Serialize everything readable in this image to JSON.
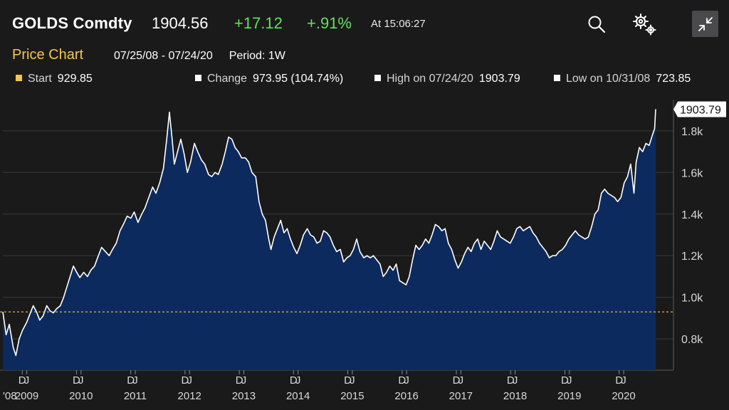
{
  "header": {
    "ticker": "GOLDS Comdty",
    "last_price": "1904.56",
    "net_change": "+17.12",
    "pct_change": "+.91%",
    "time": "At 15:06:27",
    "icons": [
      "search-icon",
      "gear-icon",
      "minimize-icon"
    ]
  },
  "subheader": {
    "title": "Price Chart",
    "date_range": "07/25/08 - 07/24/20",
    "period": "Period: 1W"
  },
  "stats": {
    "start_label": "Start",
    "start_value": "929.85",
    "change_label": "Change",
    "change_value": "973.95 (104.74%)",
    "high_label": "High on 07/24/20",
    "high_value": "1903.79",
    "low_label": "Low on 10/31/08",
    "low_value": "723.85"
  },
  "colors": {
    "background": "#1b1a1b",
    "area_fill": "#0d2a5e",
    "line": "#ffffff",
    "positive": "#5fe35b",
    "accent": "#f5c54e",
    "start_line": "#f5c54e"
  },
  "chart_data": {
    "type": "area",
    "title": "Price Chart",
    "xlabel": "",
    "ylabel": "",
    "ylim": [
      650,
      1950
    ],
    "grid": true,
    "y_ticks": [
      800,
      1000,
      1200,
      1400,
      1600,
      1800
    ],
    "y_tick_labels": [
      "0.8k",
      "1.0k",
      "1.2k",
      "1.4k",
      "1.6k",
      "1.8k"
    ],
    "last_value_label": "1903.79",
    "start_reference": 929.85,
    "x_ticks": [
      {
        "t": 2008.917,
        "month": "D",
        "year": "'08"
      },
      {
        "t": 2009.0,
        "month": "J",
        "year": "2009"
      },
      {
        "t": 2009.917,
        "month": "D",
        "year": ""
      },
      {
        "t": 2010.0,
        "month": "J",
        "year": "2010"
      },
      {
        "t": 2010.917,
        "month": "D",
        "year": ""
      },
      {
        "t": 2011.0,
        "month": "J",
        "year": "2011"
      },
      {
        "t": 2011.917,
        "month": "D",
        "year": ""
      },
      {
        "t": 2012.0,
        "month": "J",
        "year": "2012"
      },
      {
        "t": 2012.917,
        "month": "D",
        "year": ""
      },
      {
        "t": 2013.0,
        "month": "J",
        "year": "2013"
      },
      {
        "t": 2013.917,
        "month": "D",
        "year": ""
      },
      {
        "t": 2014.0,
        "month": "J",
        "year": "2014"
      },
      {
        "t": 2014.917,
        "month": "D",
        "year": ""
      },
      {
        "t": 2015.0,
        "month": "J",
        "year": "2015"
      },
      {
        "t": 2015.917,
        "month": "D",
        "year": ""
      },
      {
        "t": 2016.0,
        "month": "J",
        "year": "2016"
      },
      {
        "t": 2016.917,
        "month": "D",
        "year": ""
      },
      {
        "t": 2017.0,
        "month": "J",
        "year": "2017"
      },
      {
        "t": 2017.917,
        "month": "D",
        "year": ""
      },
      {
        "t": 2018.0,
        "month": "J",
        "year": "2018"
      },
      {
        "t": 2018.917,
        "month": "D",
        "year": ""
      },
      {
        "t": 2019.0,
        "month": "J",
        "year": "2019"
      },
      {
        "t": 2019.917,
        "month": "D",
        "year": ""
      },
      {
        "t": 2020.0,
        "month": "J",
        "year": "2020"
      }
    ],
    "series": [
      {
        "name": "GOLDS Comdty",
        "points": [
          [
            2008.56,
            930
          ],
          [
            2008.62,
            820
          ],
          [
            2008.68,
            870
          ],
          [
            2008.75,
            760
          ],
          [
            2008.8,
            720
          ],
          [
            2008.86,
            800
          ],
          [
            2008.92,
            840
          ],
          [
            2009.0,
            880
          ],
          [
            2009.06,
            920
          ],
          [
            2009.12,
            960
          ],
          [
            2009.18,
            930
          ],
          [
            2009.24,
            890
          ],
          [
            2009.3,
            910
          ],
          [
            2009.37,
            960
          ],
          [
            2009.43,
            935
          ],
          [
            2009.49,
            925
          ],
          [
            2009.55,
            945
          ],
          [
            2009.62,
            960
          ],
          [
            2009.68,
            1000
          ],
          [
            2009.74,
            1050
          ],
          [
            2009.8,
            1100
          ],
          [
            2009.86,
            1150
          ],
          [
            2009.92,
            1120
          ],
          [
            2009.98,
            1095
          ],
          [
            2010.05,
            1120
          ],
          [
            2010.12,
            1100
          ],
          [
            2010.18,
            1130
          ],
          [
            2010.25,
            1150
          ],
          [
            2010.32,
            1200
          ],
          [
            2010.38,
            1240
          ],
          [
            2010.45,
            1220
          ],
          [
            2010.52,
            1200
          ],
          [
            2010.58,
            1230
          ],
          [
            2010.65,
            1260
          ],
          [
            2010.72,
            1320
          ],
          [
            2010.78,
            1350
          ],
          [
            2010.85,
            1390
          ],
          [
            2010.92,
            1380
          ],
          [
            2010.98,
            1410
          ],
          [
            2011.05,
            1360
          ],
          [
            2011.12,
            1400
          ],
          [
            2011.18,
            1430
          ],
          [
            2011.25,
            1480
          ],
          [
            2011.32,
            1530
          ],
          [
            2011.38,
            1500
          ],
          [
            2011.45,
            1550
          ],
          [
            2011.52,
            1620
          ],
          [
            2011.58,
            1760
          ],
          [
            2011.63,
            1890
          ],
          [
            2011.68,
            1760
          ],
          [
            2011.72,
            1640
          ],
          [
            2011.78,
            1700
          ],
          [
            2011.84,
            1760
          ],
          [
            2011.9,
            1690
          ],
          [
            2011.96,
            1600
          ],
          [
            2012.02,
            1650
          ],
          [
            2012.09,
            1740
          ],
          [
            2012.15,
            1700
          ],
          [
            2012.22,
            1660
          ],
          [
            2012.28,
            1640
          ],
          [
            2012.35,
            1590
          ],
          [
            2012.41,
            1580
          ],
          [
            2012.47,
            1600
          ],
          [
            2012.53,
            1590
          ],
          [
            2012.6,
            1640
          ],
          [
            2012.66,
            1700
          ],
          [
            2012.72,
            1770
          ],
          [
            2012.78,
            1760
          ],
          [
            2012.84,
            1720
          ],
          [
            2012.9,
            1700
          ],
          [
            2012.96,
            1670
          ],
          [
            2013.03,
            1670
          ],
          [
            2013.09,
            1650
          ],
          [
            2013.15,
            1600
          ],
          [
            2013.22,
            1580
          ],
          [
            2013.28,
            1460
          ],
          [
            2013.34,
            1400
          ],
          [
            2013.4,
            1370
          ],
          [
            2013.46,
            1280
          ],
          [
            2013.5,
            1230
          ],
          [
            2013.56,
            1290
          ],
          [
            2013.62,
            1330
          ],
          [
            2013.68,
            1370
          ],
          [
            2013.74,
            1310
          ],
          [
            2013.8,
            1330
          ],
          [
            2013.86,
            1280
          ],
          [
            2013.92,
            1240
          ],
          [
            2013.98,
            1210
          ],
          [
            2014.04,
            1250
          ],
          [
            2014.1,
            1300
          ],
          [
            2014.17,
            1330
          ],
          [
            2014.23,
            1300
          ],
          [
            2014.29,
            1290
          ],
          [
            2014.35,
            1260
          ],
          [
            2014.41,
            1270
          ],
          [
            2014.47,
            1320
          ],
          [
            2014.53,
            1310
          ],
          [
            2014.59,
            1290
          ],
          [
            2014.65,
            1250
          ],
          [
            2014.71,
            1220
          ],
          [
            2014.78,
            1230
          ],
          [
            2014.84,
            1170
          ],
          [
            2014.9,
            1190
          ],
          [
            2014.96,
            1200
          ],
          [
            2015.02,
            1230
          ],
          [
            2015.08,
            1280
          ],
          [
            2015.14,
            1220
          ],
          [
            2015.21,
            1190
          ],
          [
            2015.27,
            1200
          ],
          [
            2015.33,
            1190
          ],
          [
            2015.39,
            1200
          ],
          [
            2015.45,
            1180
          ],
          [
            2015.51,
            1160
          ],
          [
            2015.57,
            1100
          ],
          [
            2015.63,
            1120
          ],
          [
            2015.69,
            1150
          ],
          [
            2015.75,
            1130
          ],
          [
            2015.81,
            1160
          ],
          [
            2015.87,
            1080
          ],
          [
            2015.93,
            1070
          ],
          [
            2015.99,
            1060
          ],
          [
            2016.05,
            1100
          ],
          [
            2016.11,
            1180
          ],
          [
            2016.17,
            1250
          ],
          [
            2016.23,
            1230
          ],
          [
            2016.29,
            1250
          ],
          [
            2016.35,
            1280
          ],
          [
            2016.41,
            1260
          ],
          [
            2016.47,
            1300
          ],
          [
            2016.53,
            1350
          ],
          [
            2016.59,
            1340
          ],
          [
            2016.65,
            1320
          ],
          [
            2016.71,
            1330
          ],
          [
            2016.77,
            1260
          ],
          [
            2016.83,
            1230
          ],
          [
            2016.89,
            1180
          ],
          [
            2016.95,
            1140
          ],
          [
            2017.01,
            1170
          ],
          [
            2017.07,
            1210
          ],
          [
            2017.13,
            1240
          ],
          [
            2017.19,
            1220
          ],
          [
            2017.25,
            1260
          ],
          [
            2017.31,
            1280
          ],
          [
            2017.37,
            1230
          ],
          [
            2017.43,
            1270
          ],
          [
            2017.49,
            1250
          ],
          [
            2017.55,
            1230
          ],
          [
            2017.61,
            1270
          ],
          [
            2017.67,
            1320
          ],
          [
            2017.73,
            1290
          ],
          [
            2017.79,
            1280
          ],
          [
            2017.85,
            1270
          ],
          [
            2017.91,
            1260
          ],
          [
            2017.97,
            1290
          ],
          [
            2018.03,
            1330
          ],
          [
            2018.09,
            1340
          ],
          [
            2018.15,
            1320
          ],
          [
            2018.21,
            1330
          ],
          [
            2018.27,
            1340
          ],
          [
            2018.33,
            1310
          ],
          [
            2018.39,
            1290
          ],
          [
            2018.45,
            1260
          ],
          [
            2018.51,
            1240
          ],
          [
            2018.57,
            1220
          ],
          [
            2018.63,
            1190
          ],
          [
            2018.69,
            1200
          ],
          [
            2018.75,
            1200
          ],
          [
            2018.81,
            1220
          ],
          [
            2018.87,
            1230
          ],
          [
            2018.93,
            1250
          ],
          [
            2018.99,
            1280
          ],
          [
            2019.05,
            1300
          ],
          [
            2019.11,
            1320
          ],
          [
            2019.17,
            1300
          ],
          [
            2019.23,
            1290
          ],
          [
            2019.29,
            1280
          ],
          [
            2019.35,
            1290
          ],
          [
            2019.41,
            1340
          ],
          [
            2019.47,
            1400
          ],
          [
            2019.53,
            1420
          ],
          [
            2019.59,
            1500
          ],
          [
            2019.65,
            1520
          ],
          [
            2019.71,
            1500
          ],
          [
            2019.77,
            1490
          ],
          [
            2019.83,
            1480
          ],
          [
            2019.89,
            1460
          ],
          [
            2019.95,
            1480
          ],
          [
            2020.01,
            1550
          ],
          [
            2020.07,
            1580
          ],
          [
            2020.13,
            1640
          ],
          [
            2020.19,
            1500
          ],
          [
            2020.23,
            1650
          ],
          [
            2020.29,
            1720
          ],
          [
            2020.35,
            1700
          ],
          [
            2020.41,
            1740
          ],
          [
            2020.47,
            1730
          ],
          [
            2020.53,
            1780
          ],
          [
            2020.57,
            1810
          ],
          [
            2020.59,
            1904
          ]
        ]
      }
    ]
  }
}
